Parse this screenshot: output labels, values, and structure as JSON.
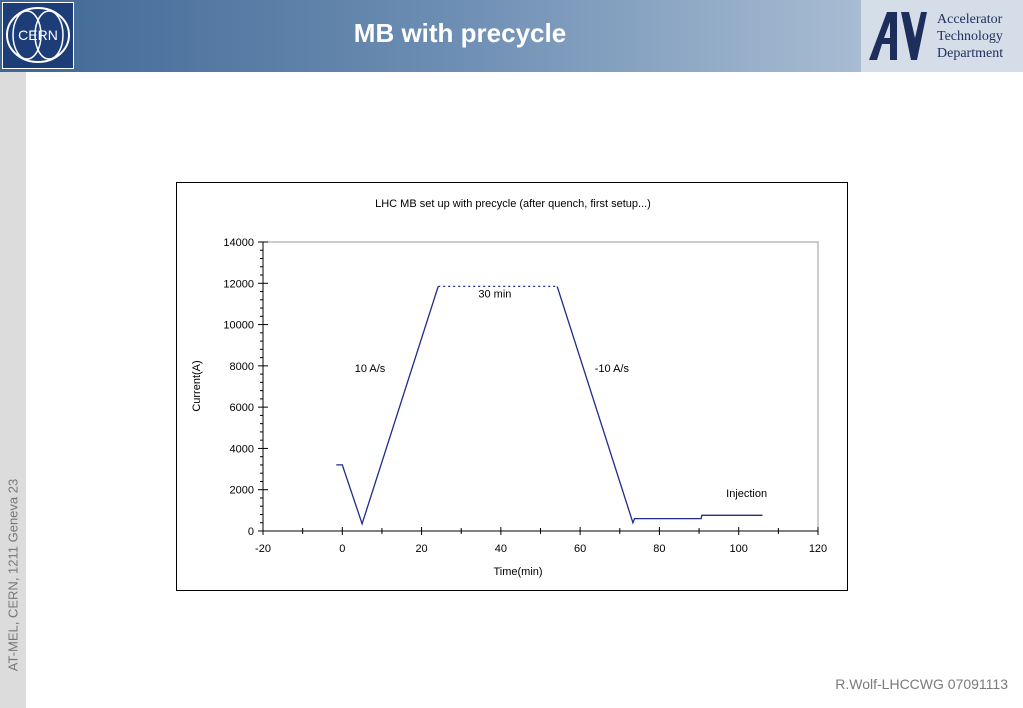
{
  "slide": {
    "title": "MB with precycle",
    "side_text": "AT-MEL, CERN, 1211 Geneva 23",
    "footer": "R.Wolf-LHCCWG 07091113",
    "cern_logo_text": "CERN",
    "dept_logo_lines": [
      "Accelerator",
      "Technology",
      "Department"
    ]
  },
  "colors": {
    "line": "#1f2a8c",
    "header_dark": "#3f6694",
    "logo_blue": "#1d3d78"
  },
  "chart_data": {
    "type": "line",
    "title": "LHC MB set up with precycle (after quench, first setup...)",
    "xlabel": "Time(min)",
    "ylabel": "Current(A)",
    "xlim": [
      -20,
      120
    ],
    "ylim": [
      0,
      14000
    ],
    "x_ticks": [
      -20,
      0,
      20,
      40,
      60,
      80,
      100,
      120
    ],
    "y_ticks": [
      0,
      2000,
      4000,
      6000,
      8000,
      10000,
      12000,
      14000
    ],
    "grid": false,
    "series": [
      {
        "style": "solid",
        "points": [
          [
            -1.5,
            3200
          ],
          [
            0,
            3200
          ],
          [
            5,
            350
          ],
          [
            24.2,
            11850
          ]
        ]
      },
      {
        "style": "dotted",
        "points": [
          [
            24.2,
            11850
          ],
          [
            54.2,
            11850
          ]
        ]
      },
      {
        "style": "solid",
        "points": [
          [
            54.2,
            11850
          ],
          [
            73.3,
            400
          ],
          [
            73.7,
            600
          ],
          [
            90.5,
            600
          ],
          [
            90.7,
            760
          ],
          [
            106,
            760
          ]
        ]
      }
    ],
    "annotations": [
      {
        "text": "30 min",
        "x": 38.5,
        "y": 11300
      },
      {
        "text": "10 A/s",
        "x": 7,
        "y": 7700
      },
      {
        "text": "-10 A/s",
        "x": 68,
        "y": 7700
      },
      {
        "text": "Injection",
        "x": 102,
        "y": 1650
      }
    ]
  }
}
